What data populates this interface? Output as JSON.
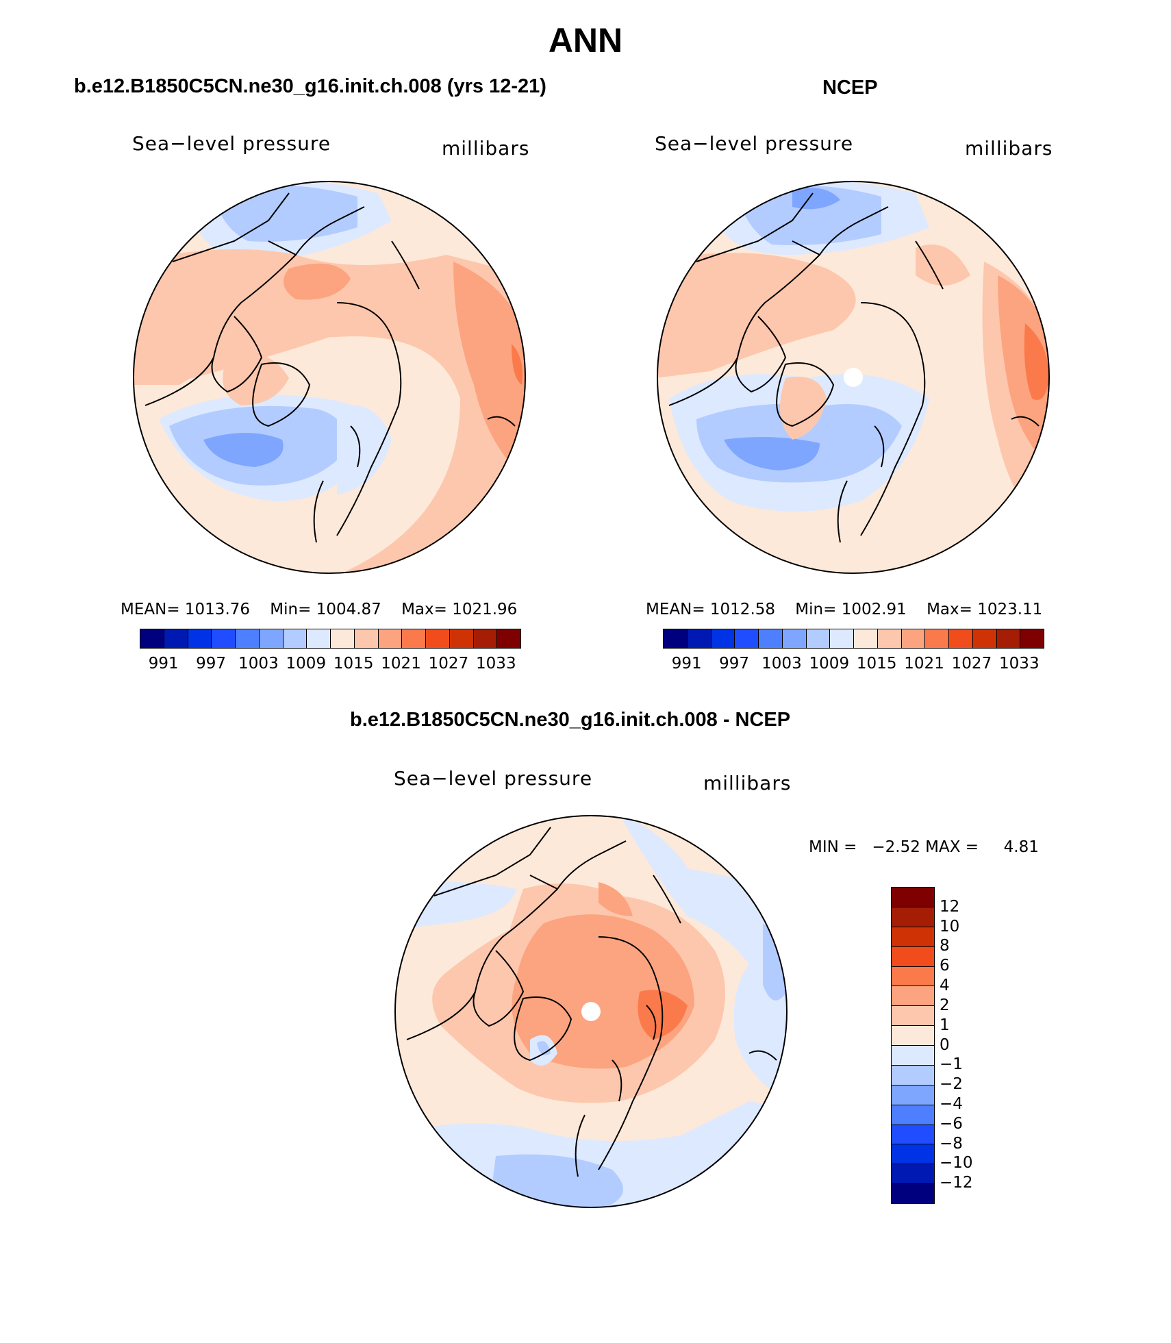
{
  "title": "ANN",
  "colors": {
    "abs_scale": [
      "#00007f",
      "#0019b3",
      "#0033e6",
      "#1f4dff",
      "#4d7fff",
      "#7fa6ff",
      "#b3ccff",
      "#dde9ff",
      "#fde9d9",
      "#fdc7ad",
      "#fca47f",
      "#fb7a4c",
      "#f14d1c",
      "#cf3204",
      "#a51d05",
      "#7f0000"
    ],
    "diff_scale": [
      "#00007f",
      "#0019b3",
      "#0033e6",
      "#1f4dff",
      "#4d7fff",
      "#7fa6ff",
      "#b3ccff",
      "#dde9ff",
      "#fde9d9",
      "#fdc7ad",
      "#fca47f",
      "#fb7a4c",
      "#f14d1c",
      "#cf3204",
      "#a51d05",
      "#7f0000"
    ]
  },
  "panels": [
    {
      "title": "b.e12.B1850C5CN.ne30_g16.init.ch.008 (yrs 12-21)",
      "variable": "Sea−level pressure",
      "units": "millibars",
      "stats": {
        "mean_label": "MEAN=",
        "mean": "1013.76",
        "min_label": "Min=",
        "min": "1004.87",
        "max_label": "Max=",
        "max": "1021.96"
      },
      "colorbar_ticks": [
        "991",
        "997",
        "1003",
        "1009",
        "1015",
        "1021",
        "1027",
        "1033"
      ]
    },
    {
      "title": "NCEP",
      "variable": "Sea−level pressure",
      "units": "millibars",
      "stats": {
        "mean_label": "MEAN=",
        "mean": "1012.58",
        "min_label": "Min=",
        "min": "1002.91",
        "max_label": "Max=",
        "max": "1023.11"
      },
      "colorbar_ticks": [
        "991",
        "997",
        "1003",
        "1009",
        "1015",
        "1021",
        "1027",
        "1033"
      ]
    },
    {
      "title": "b.e12.B1850C5CN.ne30_g16.init.ch.008 - NCEP",
      "variable": "Sea−level pressure",
      "units": "millibars",
      "stats": {
        "min_label": "MIN =",
        "min": "−2.52",
        "max_label": "MAX =",
        "max": "4.81"
      },
      "colorbar_ticks": [
        "12",
        "10",
        "8",
        "6",
        "4",
        "2",
        "1",
        "0",
        "−1",
        "−2",
        "−4",
        "−6",
        "−8",
        "−10",
        "−12"
      ]
    }
  ]
}
